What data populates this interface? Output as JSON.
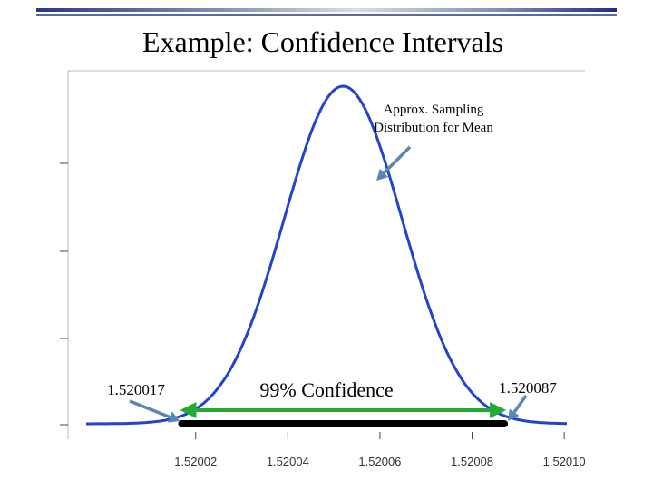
{
  "slide": {
    "title": "Example: Confidence Intervals"
  },
  "chart_data": {
    "type": "line",
    "title": "",
    "xlabel": "",
    "ylabel": "",
    "x_ticks": [
      "1.52002",
      "1.52004",
      "1.52006",
      "1.52008",
      "1.52010"
    ],
    "x_tick_values": [
      1.52002,
      1.52004,
      1.52006,
      1.52008,
      1.5201
    ],
    "xlim": [
      1.5199923,
      1.5201045
    ],
    "y_axis_tick_labels_shown": false,
    "series": [
      {
        "name": "",
        "distribution": "normal",
        "mean": 1.520052,
        "sd": 1.28e-05,
        "color": "#2244cc"
      }
    ],
    "annotations": [
      {
        "text": "Approx. Sampling Distribution for Mean",
        "arrow_color": "#5a86b4"
      },
      {
        "text": "1.520017",
        "x": 1.520017,
        "arrow_color": "#5a86b4"
      },
      {
        "text": "1.520087",
        "x": 1.520087,
        "arrow_color": "#5a86b4"
      },
      {
        "text": "99% Confidence",
        "interval": [
          1.520017,
          1.520087
        ],
        "arrow_color": "#22aa33",
        "bar_color": "#000000"
      }
    ]
  }
}
